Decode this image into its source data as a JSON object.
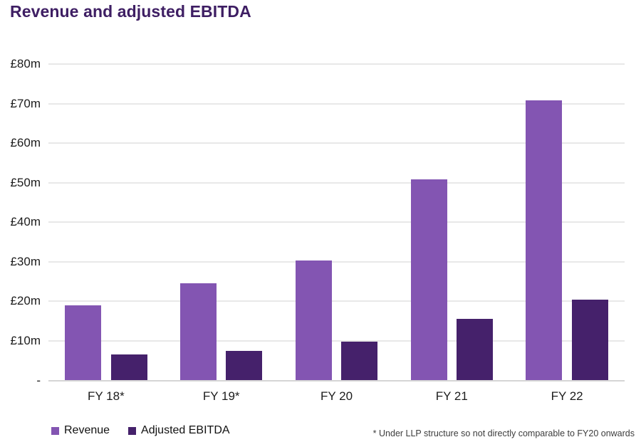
{
  "chart_data": {
    "type": "bar",
    "title": "Revenue and adjusted EBITDA",
    "categories": [
      "FY 18*",
      "FY 19*",
      "FY 20",
      "FY 21",
      "FY 22"
    ],
    "series": [
      {
        "name": "Revenue",
        "color": "#8355b2",
        "values": [
          18.9,
          24.5,
          30.4,
          50.8,
          70.9
        ]
      },
      {
        "name": "Adjusted EBITDA",
        "color": "#45216b",
        "values": [
          6.5,
          7.4,
          9.8,
          15.6,
          20.4
        ]
      }
    ],
    "y_ticks": [
      {
        "label": "£80m",
        "value": 80
      },
      {
        "label": "£70m",
        "value": 70
      },
      {
        "label": "£60m",
        "value": 60
      },
      {
        "label": "£50m",
        "value": 50
      },
      {
        "label": "£40m",
        "value": 40
      },
      {
        "label": "£30m",
        "value": 30
      },
      {
        "label": "£20m",
        "value": 20
      },
      {
        "label": "£10m",
        "value": 10
      },
      {
        "label": "-",
        "value": 0
      }
    ],
    "ylim": [
      0,
      80
    ],
    "unit": "£m",
    "grid": true,
    "legend_position": "bottom-left",
    "footnote": "* Under LLP structure so not directly comparable to FY20 onwards"
  },
  "colors": {
    "title": "#3e1e63",
    "axis_text": "#1c1c1c",
    "gridline": "#e8e8e8",
    "baseline": "#d5d5d5",
    "background": "#ffffff"
  }
}
